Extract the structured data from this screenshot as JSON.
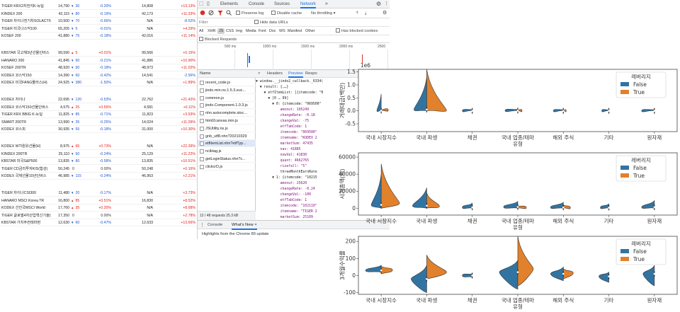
{
  "stock_table": {
    "groups": [
      {
        "rows": [
          [
            "TIGER KRX2차전지K-뉴딜",
            "14,790",
            "down",
            "30",
            "-0.20%",
            "14,808",
            "+13.13%"
          ],
          [
            "KINDEX 200",
            "42,115",
            "down",
            "80",
            "-0.19%",
            "42,173",
            "+11.33%"
          ],
          [
            "TIGER 차이나전기차SOLACTIVE",
            "10,500",
            "down",
            "70",
            "-0.66%",
            "N/A",
            "-8.52%"
          ],
          [
            "TIGER 미국나스닥100",
            "65,205",
            "down",
            "5",
            "-0.01%",
            "N/A",
            "+4.29%"
          ],
          [
            "KOSEF 200",
            "41,880",
            "down",
            "75",
            "-0.18%",
            "42,016",
            "+11.14%"
          ]
        ]
      },
      {
        "rows": [
          [
            "KBSTAR 국고채3년선물인버스",
            "99,590",
            "up",
            "5",
            "+0.01%",
            "99,566",
            "+0.15%"
          ],
          [
            "HANARO 200",
            "41,845",
            "down",
            "90",
            "-0.21%",
            "41,886",
            "+10.90%"
          ],
          [
            "KOSEF 200TR",
            "48,920",
            "down",
            "90",
            "-0.18%",
            "48,973",
            "+11.02%"
          ],
          [
            "KODEX 코스닥150",
            "14,390",
            "down",
            "60",
            "-0.42%",
            "14,541",
            "-2.56%"
          ],
          [
            "KODEX 미국FANG플러스(H)",
            "24,925",
            "down",
            "380",
            "-1.50%",
            "N/A",
            "+1.89%"
          ]
        ]
      },
      {
        "rows": [
          [
            "KODEX 차이나",
            "22,695",
            "down",
            "120",
            "-0.53%",
            "22,762",
            "+21.42%"
          ],
          [
            "KODEX 코스닥150선물인버스",
            "4,575",
            "up",
            "25",
            "+0.55%",
            "4,581",
            "+0.11%"
          ],
          [
            "TIGER KRX BBIG K-뉴딜",
            "11,825",
            "down",
            "85",
            "-0.71%",
            "11,823",
            "+3.93%"
          ],
          [
            "SMART 200TR",
            "13,990",
            "down",
            "35",
            "-0.25%",
            "14,024",
            "+11.09%"
          ],
          [
            "KODEX 코스피",
            "30,935",
            "down",
            "55",
            "-0.18%",
            "31,000",
            "+10.30%"
          ]
        ]
      },
      {
        "rows": [
          [
            "KODEX WTI원유선물(H)",
            "8,975",
            "up",
            "65",
            "+0.73%",
            "N/A",
            "+22.39%"
          ],
          [
            "KINDEX 200TR",
            "25,110",
            "down",
            "60",
            "-0.24%",
            "25,129",
            "+11.22%"
          ],
          [
            "KBSTAR 미국S&P500",
            "13,835",
            "down",
            "80",
            "-0.58%",
            "13,835",
            "+10.51%"
          ],
          [
            "TIGER CD금리투자KIS(합성)",
            "50,245",
            "flat",
            "0",
            "0.00%",
            "50,248",
            "+0.16%"
          ],
          [
            "KODEX 국채선물10년인버스",
            "46,985",
            "down",
            "115",
            "-0.24%",
            "46,963",
            "+2.21%"
          ]
        ]
      },
      {
        "rows": [
          [
            "TIGER 차이나CSI300",
            "11,480",
            "down",
            "20",
            "-0.17%",
            "N/A",
            "+3.73%"
          ],
          [
            "HANARO MSCI Korea TR",
            "16,800",
            "up",
            "85",
            "+0.51%",
            "16,830",
            "+8.52%"
          ],
          [
            "KODEX 선진국MSCI World",
            "17,760",
            "up",
            "35",
            "+0.20%",
            "N/A",
            "+8.68%"
          ],
          [
            "TIGER 글로벌4차산업혁신기술(합)",
            "17,350",
            "flat",
            "0",
            "0.00%",
            "N/A",
            "+2.78%"
          ],
          [
            "KBSTAR 가치주컨테마펀",
            "12,630",
            "down",
            "60",
            "-0.47%",
            "12,633",
            "+13.66%"
          ]
        ]
      }
    ]
  },
  "devtools": {
    "tabs": [
      "Elements",
      "Console",
      "Sources",
      "Network"
    ],
    "toolbar": {
      "preserve_log": "Preserve log",
      "disable_cache": "Disable cache",
      "throttling": "No throttling"
    },
    "filter_placeholder": "Filter",
    "hide_data_urls": "Hide data URLs",
    "types": [
      "All",
      "XHR",
      "JS",
      "CSS",
      "Img",
      "Media",
      "Font",
      "Doc",
      "WS",
      "Manifest",
      "Other"
    ],
    "has_blocked_cookies": "Has blocked cookies",
    "blocked_requests": "Blocked Requests",
    "timeline_labels": [
      "500 ms",
      "1000 ms",
      "1500 ms",
      "2000 ms",
      "2500"
    ],
    "name_header": "Name",
    "requests": [
      "recent_code.js",
      "jindo.min.ns.1.5.3.euc...",
      "common.js",
      "jindo.Component.1.0.3.js",
      "nhn.autocomplete.stoc...",
      "html2canvas.min.js",
      "JSUtility.ns.js",
      "gnb_utf8.nhn?20210329",
      "etfItemList.nhn?etfTyp...",
      "nclktag.js",
      "getLoginStatus.nhn?c...",
      "clickcrD.js"
    ],
    "selected_request": 8,
    "status_bar": "12 / 48 requests    25.3 kB",
    "response_tabs": [
      "×",
      "Headers",
      "Preview",
      "Respo"
    ],
    "code_lines": [
      "▼ window.__jindo2_callback._6334(",
      "  ▼ result: {,…}",
      "    ▼ etfItemList: [{itemcode: \"0",
      "      ▼ [0 … 99]",
      "        ▼ 0: {itemcode: \"069500\"",
      "            amonut: 195249",
      "            changeRate: -0.18",
      "            changeVal: -75",
      "            etfTabCode: 1",
      "            itemcode: \"069500\"",
      "            itemname: \"KODEX 2",
      "            marketSum: 47435",
      "            nav: 41885",
      "            nowVal: 41830",
      "            quant: 4662765",
      "            risefall: \"5\"",
      "            threeMonthEarnRate",
      "        ▼ 1: {itemcode: \"10215",
      "            amonut: 25620",
      "            changeRate: -0.24",
      "            changeVal: -100",
      "            etfTabCode: 1",
      "            itemcode: \"102110\"",
      "            itemname: \"TIGER 2",
      "            marketSum: 25109"
    ],
    "drawer_tabs": [
      "Console",
      "What's New ×"
    ],
    "drawer_message": "Highlights from the Chrome 89 update"
  },
  "chart_data": [
    {
      "type": "violin",
      "ylabel": "거래대금(백만)",
      "offset_label": "1e6",
      "ylim": [
        -0.8,
        1.6
      ],
      "yticks": [
        "-0.5",
        "0.0",
        "0.5",
        "1.0",
        "1.5"
      ],
      "xlabel": "유형",
      "categories": [
        "국내 시장지수",
        "국내 파생",
        "채권",
        "국내 업종/테마",
        "해외 주식",
        "기타",
        "원자재"
      ],
      "legend_title": "레버리지",
      "legend": [
        "False",
        "True"
      ]
    },
    {
      "type": "violin",
      "ylabel": "시가총액(억)",
      "ylim": [
        -8000,
        65000
      ],
      "yticks": [
        "0",
        "20000",
        "40000",
        "60000"
      ],
      "xlabel": "유형",
      "categories": [
        "국내 시장지수",
        "국내 파생",
        "채권",
        "국내 업종/테마",
        "해외 주식",
        "기타",
        "원자재"
      ],
      "legend_title": "레버리지",
      "legend": [
        "False",
        "True"
      ]
    },
    {
      "type": "violin",
      "ylabel": "3개월수익률",
      "ylim": [
        -110,
        230
      ],
      "yticks": [
        "-100",
        "0",
        "100",
        "200"
      ],
      "xlabel": "유형",
      "categories": [
        "국내 시장지수",
        "국내 파생",
        "채권",
        "국내 업종/테마",
        "해외 주식",
        "기타",
        "원자재"
      ],
      "legend_title": "레버리지",
      "legend": [
        "False",
        "True"
      ]
    }
  ],
  "colors": {
    "false": "#3274a1",
    "true": "#e1812c",
    "up": "#e2201e",
    "down": "#2256c7"
  }
}
